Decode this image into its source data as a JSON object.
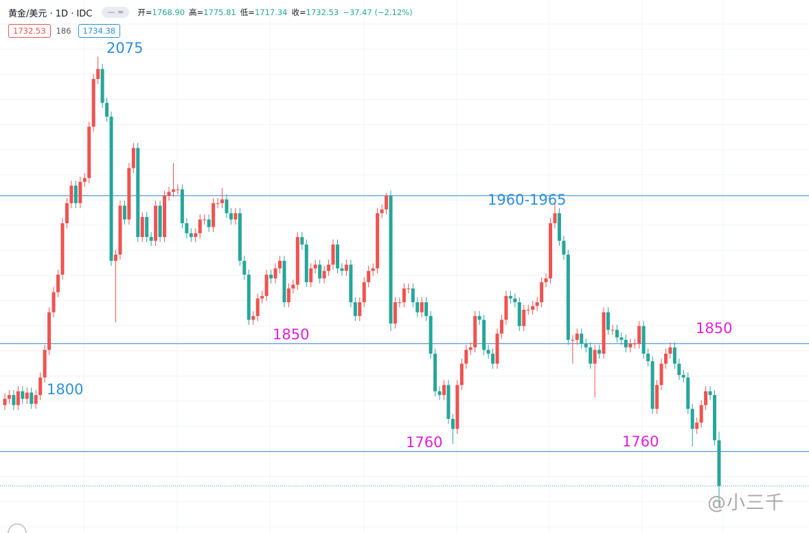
{
  "header": {
    "symbol": "黄金/美元 · 1D · IDC",
    "ohlc": [
      {
        "label": "开=",
        "value": "1768.90"
      },
      {
        "label": "高=",
        "value": "1775.81"
      },
      {
        "label": "低=",
        "value": "1717.34"
      },
      {
        "label": "收=",
        "value": "1732.53"
      }
    ],
    "change": "−37.47 (−2.12%)"
  },
  "badges": {
    "bid": "1732.53",
    "spread": "186",
    "ask": "1734.38"
  },
  "watermark": "@小三千",
  "chart_data": {
    "type": "candlestick",
    "up_color": "#ef5350",
    "down_color": "#26a69a",
    "ylim": [
      1695,
      2120
    ],
    "open": [
      1797,
      1802,
      1805,
      1797,
      1808,
      1802,
      1807,
      1798,
      1805,
      1819,
      1841,
      1871,
      1887,
      1901,
      1942,
      1958,
      1972,
      1958,
      1975,
      1978,
      2019,
      2057,
      2065,
      2038,
      2027,
      1912,
      1917,
      1956,
      1945,
      1986,
      2002,
      1931,
      1947,
      1931,
      1928,
      1956,
      1931,
      1964,
      1967,
      1969,
      1969,
      1942,
      1934,
      1931,
      1934,
      1945,
      1945,
      1939,
      1958,
      1958,
      1961,
      1950,
      1945,
      1950,
      1912,
      1901,
      1865,
      1868,
      1882,
      1884,
      1901,
      1898,
      1906,
      1912,
      1879,
      1890,
      1893,
      1931,
      1925,
      1895,
      1906,
      1909,
      1898,
      1904,
      1909,
      1925,
      1906,
      1904,
      1909,
      1879,
      1868,
      1879,
      1895,
      1904,
      1906,
      1950,
      1953,
      1964,
      1862,
      1879,
      1879,
      1890,
      1890,
      1879,
      1871,
      1879,
      1868,
      1838,
      1808,
      1805,
      1813,
      1786,
      1778,
      1813,
      1830,
      1841,
      1843,
      1868,
      1865,
      1841,
      1838,
      1830,
      1854,
      1865,
      1884,
      1882,
      1879,
      1860,
      1873,
      1873,
      1876,
      1879,
      1895,
      1898,
      1942,
      1950,
      1928,
      1917,
      1849,
      1849,
      1854,
      1846,
      1843,
      1830,
      1841,
      1838,
      1871,
      1857,
      1857,
      1851,
      1849,
      1843,
      1846,
      1846,
      1860,
      1838,
      1832,
      1794,
      1813,
      1830,
      1838,
      1843,
      1830,
      1821,
      1819,
      1794,
      1778,
      1783,
      1797,
      1808,
      1805,
      1768.9
    ],
    "high": [
      1806,
      1809,
      1809,
      1812,
      1812,
      1811,
      1811,
      1809,
      1823,
      1845,
      1875,
      1891,
      1905,
      1946,
      1962,
      1976,
      1976,
      1979,
      1982,
      2023,
      2061,
      2075,
      2069,
      2042,
      2031,
      1921,
      1960,
      1960,
      1990,
      2006,
      2006,
      1951,
      1951,
      1935,
      1960,
      1960,
      1968,
      1971,
      1990,
      1973,
      1973,
      1946,
      1938,
      1938,
      1949,
      1949,
      1949,
      1962,
      1962,
      1970,
      1965,
      1954,
      1954,
      1954,
      1916,
      1905,
      1872,
      1886,
      1888,
      1905,
      1905,
      1910,
      1916,
      1916,
      1894,
      1897,
      1935,
      1935,
      1929,
      1910,
      1913,
      1913,
      1908,
      1913,
      1929,
      1929,
      1910,
      1913,
      1913,
      1883,
      1883,
      1899,
      1908,
      1910,
      1954,
      1957,
      1966,
      1968,
      1883,
      1883,
      1894,
      1894,
      1894,
      1883,
      1883,
      1883,
      1872,
      1842,
      1812,
      1817,
      1817,
      1790,
      1817,
      1834,
      1845,
      1847,
      1872,
      1872,
      1869,
      1845,
      1842,
      1858,
      1869,
      1888,
      1888,
      1886,
      1883,
      1877,
      1877,
      1880,
      1883,
      1899,
      1902,
      1946,
      1959,
      1954,
      1932,
      1921,
      1853,
      1858,
      1858,
      1850,
      1847,
      1845,
      1845,
      1875,
      1875,
      1861,
      1861,
      1855,
      1853,
      1850,
      1850,
      1864,
      1864,
      1842,
      1836,
      1817,
      1834,
      1842,
      1847,
      1847,
      1834,
      1825,
      1823,
      1798,
      1787,
      1801,
      1812,
      1812,
      1809,
      1775.81
    ],
    "low": [
      1793,
      1798,
      1793,
      1793,
      1798,
      1798,
      1794,
      1794,
      1801,
      1815,
      1837,
      1867,
      1883,
      1897,
      1938,
      1954,
      1954,
      1954,
      1971,
      1974,
      2015,
      2053,
      2034,
      2023,
      1908,
      1863,
      1913,
      1941,
      1941,
      1982,
      1927,
      1927,
      1927,
      1924,
      1924,
      1927,
      1927,
      1960,
      1963,
      1965,
      1938,
      1930,
      1927,
      1927,
      1930,
      1941,
      1935,
      1935,
      1954,
      1954,
      1946,
      1941,
      1941,
      1908,
      1897,
      1861,
      1861,
      1864,
      1878,
      1880,
      1894,
      1894,
      1902,
      1875,
      1875,
      1886,
      1889,
      1921,
      1891,
      1891,
      1902,
      1894,
      1894,
      1900,
      1905,
      1902,
      1900,
      1900,
      1875,
      1864,
      1864,
      1875,
      1891,
      1900,
      1902,
      1946,
      1949,
      1856,
      1858,
      1875,
      1875,
      1886,
      1875,
      1867,
      1867,
      1864,
      1834,
      1804,
      1801,
      1801,
      1782,
      1766,
      1774,
      1809,
      1826,
      1837,
      1839,
      1861,
      1837,
      1834,
      1826,
      1826,
      1850,
      1861,
      1878,
      1875,
      1856,
      1856,
      1869,
      1869,
      1872,
      1875,
      1891,
      1894,
      1938,
      1924,
      1913,
      1845,
      1830,
      1845,
      1842,
      1839,
      1826,
      1803,
      1834,
      1834,
      1853,
      1853,
      1847,
      1845,
      1839,
      1839,
      1842,
      1842,
      1834,
      1828,
      1790,
      1790,
      1809,
      1826,
      1834,
      1826,
      1817,
      1815,
      1790,
      1764,
      1774,
      1779,
      1793,
      1801,
      1765,
      1717.34
    ],
    "close": [
      1802,
      1805,
      1797,
      1808,
      1802,
      1807,
      1798,
      1805,
      1819,
      1841,
      1871,
      1887,
      1901,
      1942,
      1958,
      1972,
      1958,
      1975,
      1978,
      2019,
      2057,
      2065,
      2038,
      2027,
      1912,
      1917,
      1956,
      1945,
      1986,
      2002,
      1931,
      1947,
      1931,
      1928,
      1956,
      1931,
      1964,
      1967,
      1969,
      1969,
      1942,
      1934,
      1931,
      1934,
      1945,
      1945,
      1939,
      1958,
      1958,
      1961,
      1950,
      1945,
      1950,
      1912,
      1901,
      1865,
      1868,
      1882,
      1884,
      1901,
      1898,
      1906,
      1912,
      1879,
      1890,
      1893,
      1931,
      1925,
      1895,
      1906,
      1909,
      1898,
      1904,
      1909,
      1925,
      1906,
      1904,
      1909,
      1879,
      1868,
      1879,
      1895,
      1904,
      1906,
      1950,
      1953,
      1964,
      1862,
      1879,
      1879,
      1890,
      1890,
      1879,
      1871,
      1879,
      1868,
      1838,
      1808,
      1805,
      1813,
      1786,
      1778,
      1813,
      1830,
      1841,
      1843,
      1868,
      1865,
      1841,
      1838,
      1830,
      1854,
      1865,
      1884,
      1882,
      1879,
      1860,
      1873,
      1873,
      1876,
      1879,
      1895,
      1898,
      1942,
      1950,
      1928,
      1917,
      1849,
      1849,
      1854,
      1846,
      1843,
      1830,
      1841,
      1838,
      1871,
      1857,
      1857,
      1851,
      1849,
      1843,
      1846,
      1846,
      1860,
      1838,
      1832,
      1794,
      1813,
      1830,
      1838,
      1843,
      1830,
      1821,
      1819,
      1794,
      1778,
      1783,
      1797,
      1808,
      1805,
      1769,
      1732.53
    ],
    "horizontal_lines": [
      {
        "value": 1964,
        "color": "#2f7fd0"
      },
      {
        "value": 1846,
        "color": "#2f7fd0"
      },
      {
        "value": 1760,
        "color": "#2f7fd0"
      }
    ],
    "annotations": [
      {
        "text": "2075",
        "color": "#2f8fd8"
      },
      {
        "text": "1800",
        "color": "#2f8fd8"
      },
      {
        "text": "1850",
        "color": "#e21fdc"
      },
      {
        "text": "1960-1965",
        "color": "#2f8fd8"
      },
      {
        "text": "1850",
        "color": "#e21fdc"
      },
      {
        "text": "1760",
        "color": "#e21fdc"
      },
      {
        "text": "1760",
        "color": "#e21fdc"
      }
    ]
  }
}
